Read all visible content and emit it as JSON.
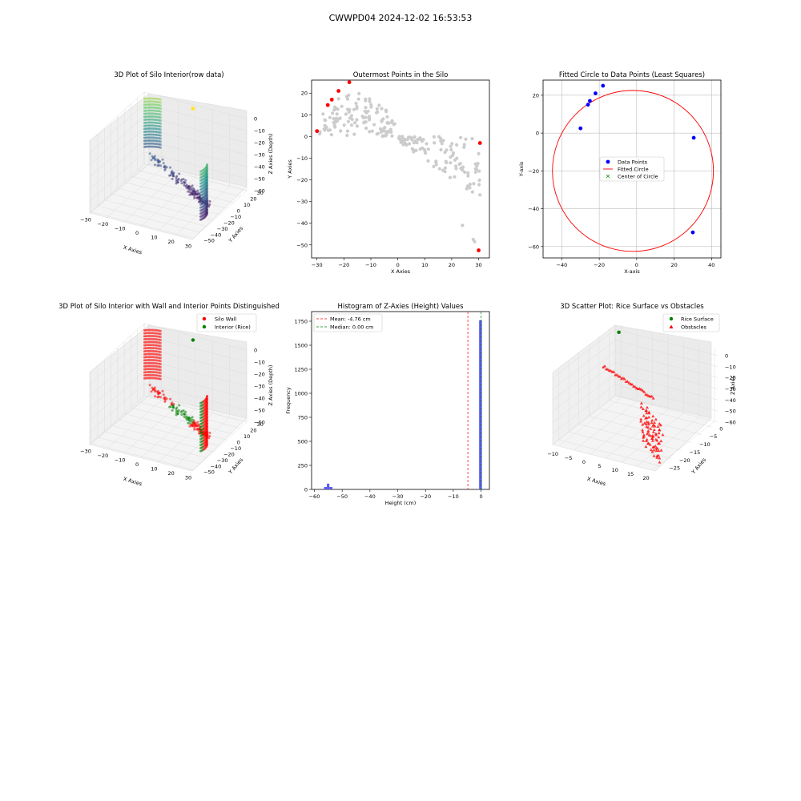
{
  "figure": {
    "suptitle": "CWWPD04 2024-12-02 16:53:53"
  },
  "colors": {
    "data_blue": "#0000ff",
    "wall_red": "#ff0000",
    "rice_green": "#008000",
    "hist_blue": "#5a5aee",
    "gray_points": "#cccccc",
    "mean_line": "#ff0000",
    "median_line": "#008000",
    "center_green": "#008000"
  },
  "chart_data": [
    {
      "id": "silo3d_raw",
      "type": "scatter3d",
      "title": "3D Plot of Silo Interior(row data)",
      "xlabel": "X Axies",
      "ylabel": "Y Axies",
      "zlabel": "Z Axies (Depth)",
      "x_ticks": [
        "−30",
        "−20",
        "−10",
        "0",
        "10",
        "20",
        "30"
      ],
      "y_ticks": [
        "−50",
        "−40",
        "−30",
        "−20",
        "−10",
        "0",
        "10",
        "20",
        "30"
      ],
      "z_ticks": [
        "0",
        "−10",
        "−20",
        "−30",
        "−40",
        "−50",
        "−60"
      ],
      "xlim": [
        -30,
        30
      ],
      "ylim": [
        -52,
        30
      ],
      "zlim": [
        -60,
        0
      ],
      "colormap": "viridis by depth",
      "outlier_point": {
        "x": 0.5,
        "y": 25,
        "z": 0,
        "color": "#fde725"
      }
    },
    {
      "id": "outermost",
      "type": "scatter",
      "title": "Outermost Points in the Silo",
      "xlabel": "X Axies",
      "ylabel": "Y Axies",
      "x_ticks": [
        "−30",
        "−20",
        "−10",
        "0",
        "10",
        "20",
        "30"
      ],
      "y_ticks": [
        "20",
        "10",
        "0",
        "−10",
        "−20",
        "−30",
        "−40",
        "−50"
      ],
      "xlim": [
        -32,
        34
      ],
      "ylim": [
        -56,
        26
      ],
      "outermost_points": [
        {
          "x": -30,
          "y": 2.5
        },
        {
          "x": -26,
          "y": 14.5
        },
        {
          "x": -24.5,
          "y": 17
        },
        {
          "x": -22,
          "y": 21
        },
        {
          "x": -18,
          "y": 25
        },
        {
          "x": 30,
          "y": -52.5
        },
        {
          "x": 30.5,
          "y": -3
        }
      ],
      "interior_series": "gray silo points"
    },
    {
      "id": "fitted_circle",
      "type": "scatter",
      "title": "Fitted Circle to Data Points (Least Squares)",
      "xlabel": "X-axis",
      "ylabel": "Y-axis",
      "x_ticks": [
        "−40",
        "−20",
        "0",
        "20",
        "40"
      ],
      "y_ticks": [
        "20",
        "0",
        "−20",
        "−40",
        "−60"
      ],
      "xlim": [
        -50,
        45
      ],
      "ylim": [
        -66,
        28
      ],
      "data_points": [
        {
          "x": -30,
          "y": 2.5
        },
        {
          "x": -26,
          "y": 15
        },
        {
          "x": -25,
          "y": 17
        },
        {
          "x": -22,
          "y": 21
        },
        {
          "x": -18,
          "y": 25
        },
        {
          "x": 30.5,
          "y": -2.5
        },
        {
          "x": 30,
          "y": -52.5
        }
      ],
      "circle": {
        "cx": -2,
        "cy": -20,
        "r": 43
      },
      "legend": {
        "data_points": "Data Points",
        "fitted_circle": "Fitted Circle",
        "center": "Center of Circle"
      }
    },
    {
      "id": "silo3d_classified",
      "type": "scatter3d",
      "title": "3D Plot of Silo Interior with Wall and Interior Points Distinguished",
      "xlabel": "X Axies",
      "ylabel": "Y Axies",
      "zlabel": "Z Axies (Depth)",
      "x_ticks": [
        "−30",
        "−20",
        "−10",
        "0",
        "10",
        "20",
        "30"
      ],
      "y_ticks": [
        "−50",
        "−40",
        "−30",
        "−20",
        "−10",
        "0",
        "10",
        "20",
        "30"
      ],
      "z_ticks": [
        "0",
        "−10",
        "−20",
        "−30",
        "−40",
        "−50",
        "−60"
      ],
      "legend": {
        "wall": "Silo Wall",
        "interior": "Interior (Rice)"
      }
    },
    {
      "id": "height_hist",
      "type": "histogram",
      "title": "Histogram of Z-Axies (Height) Values",
      "xlabel": "Height (cm)",
      "ylabel": "Frequency",
      "x_ticks": [
        "−60",
        "−50",
        "−40",
        "−30",
        "−20",
        "−10",
        "0"
      ],
      "y_ticks": [
        "0",
        "250",
        "500",
        "750",
        "1000",
        "1250",
        "1500",
        "1750"
      ],
      "xlim": [
        -61,
        3
      ],
      "ylim": [
        0,
        1850
      ],
      "bins": [
        {
          "x0": -56.5,
          "x1": -55.5,
          "count": 25
        },
        {
          "x0": -55.5,
          "x1": -54.6,
          "count": 60
        },
        {
          "x0": -54.6,
          "x1": -53.5,
          "count": 25
        },
        {
          "x0": -0.7,
          "x1": 0.3,
          "count": 1760
        }
      ],
      "mean": -4.76,
      "median": 0.0,
      "legend": {
        "mean": "Mean: -4.76 cm",
        "median": "Median: 0.00 cm"
      }
    },
    {
      "id": "rice_vs_obstacles",
      "type": "scatter3d",
      "title": "3D Scatter Plot: Rice Surface vs Obstacles",
      "xlabel": "X Axies",
      "ylabel": "Y Axies",
      "zlabel": "Z Axies",
      "x_ticks": [
        "−10",
        "−5",
        "0",
        "5",
        "10",
        "15",
        "20"
      ],
      "y_ticks": [
        "−25",
        "−20",
        "−15",
        "−10",
        "−5",
        "0"
      ],
      "z_ticks": [
        "0",
        "−10",
        "−20",
        "−30",
        "−40",
        "−50",
        "−60"
      ],
      "legend": {
        "rice": "Rice Surface",
        "obstacles": "Obstacles"
      }
    }
  ]
}
